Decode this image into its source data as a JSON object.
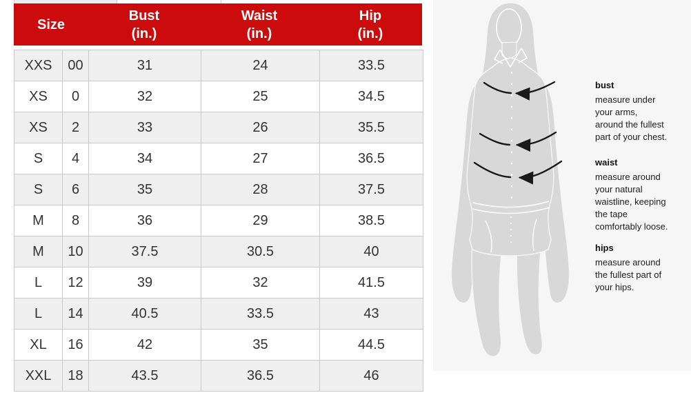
{
  "table": {
    "headers": {
      "size": "Size",
      "bust": "Bust\n(in.)",
      "waist": "Waist\n(in.)",
      "hip": "Hip\n(in.)"
    },
    "rows": [
      {
        "size_label": "XXS",
        "size_num": "00",
        "bust": "31",
        "waist": "24",
        "hip": "33.5"
      },
      {
        "size_label": "XS",
        "size_num": "0",
        "bust": "32",
        "waist": "25",
        "hip": "34.5"
      },
      {
        "size_label": "XS",
        "size_num": "2",
        "bust": "33",
        "waist": "26",
        "hip": "35.5"
      },
      {
        "size_label": "S",
        "size_num": "4",
        "bust": "34",
        "waist": "27",
        "hip": "36.5"
      },
      {
        "size_label": "S",
        "size_num": "6",
        "bust": "35",
        "waist": "28",
        "hip": "37.5"
      },
      {
        "size_label": "M",
        "size_num": "8",
        "bust": "36",
        "waist": "29",
        "hip": "38.5"
      },
      {
        "size_label": "M",
        "size_num": "10",
        "bust": "37.5",
        "waist": "30.5",
        "hip": "40"
      },
      {
        "size_label": "L",
        "size_num": "12",
        "bust": "39",
        "waist": "32",
        "hip": "41.5"
      },
      {
        "size_label": "L",
        "size_num": "14",
        "bust": "40.5",
        "waist": "33.5",
        "hip": "43"
      },
      {
        "size_label": "XL",
        "size_num": "16",
        "bust": "42",
        "waist": "35",
        "hip": "44.5"
      },
      {
        "size_label": "XXL",
        "size_num": "18",
        "bust": "43.5",
        "waist": "36.5",
        "hip": "46"
      }
    ]
  },
  "guide": {
    "figure": "woman-measurement-silhouette",
    "sections": [
      {
        "label": "bust",
        "text": "measure under\nyour arms,\naround the fullest\npart of your chest."
      },
      {
        "label": "waist",
        "text": "measure around\nyour natural\nwaistline, keeping\nthe tape\ncomfortably loose."
      },
      {
        "label": "hips",
        "text": "measure around\nthe fullest part of\nyour hips."
      }
    ]
  },
  "colors": {
    "header_red": "#cc0c0c",
    "header_text": "#ffffff",
    "row_alt_gray": "#efefef",
    "cell_border": "#c9c9c9",
    "panel_bg": "#f6f6f6",
    "silhouette_gray": "#d8d8d8",
    "arrow_black": "#1a1a1a"
  }
}
